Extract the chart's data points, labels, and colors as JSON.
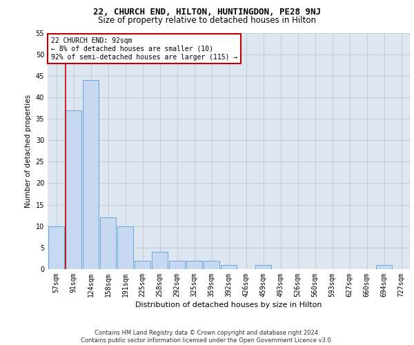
{
  "title1": "22, CHURCH END, HILTON, HUNTINGDON, PE28 9NJ",
  "title2": "Size of property relative to detached houses in Hilton",
  "xlabel": "Distribution of detached houses by size in Hilton",
  "ylabel": "Number of detached properties",
  "categories": [
    "57sqm",
    "91sqm",
    "124sqm",
    "158sqm",
    "191sqm",
    "225sqm",
    "258sqm",
    "292sqm",
    "325sqm",
    "359sqm",
    "392sqm",
    "426sqm",
    "459sqm",
    "493sqm",
    "526sqm",
    "560sqm",
    "593sqm",
    "627sqm",
    "660sqm",
    "694sqm",
    "727sqm"
  ],
  "values": [
    10,
    37,
    44,
    12,
    10,
    2,
    4,
    2,
    2,
    2,
    1,
    0,
    1,
    0,
    0,
    0,
    0,
    0,
    0,
    1,
    0
  ],
  "bar_color": "#c6d9f1",
  "bar_edge_color": "#5b9bd5",
  "highlight_bar_index": 1,
  "highlight_line_color": "#c00000",
  "annotation_text": "22 CHURCH END: 92sqm\n← 8% of detached houses are smaller (10)\n92% of semi-detached houses are larger (115) →",
  "annotation_box_edge_color": "#c00000",
  "annotation_box_face_color": "#ffffff",
  "ylim": [
    0,
    55
  ],
  "yticks": [
    0,
    5,
    10,
    15,
    20,
    25,
    30,
    35,
    40,
    45,
    50,
    55
  ],
  "grid_color": "#c0c0c0",
  "plot_bg_color": "#dce6f1",
  "footer_text": "Contains HM Land Registry data © Crown copyright and database right 2024.\nContains public sector information licensed under the Open Government Licence v3.0.",
  "title1_fontsize": 9,
  "title2_fontsize": 8.5,
  "xlabel_fontsize": 8,
  "ylabel_fontsize": 7.5,
  "tick_fontsize": 7,
  "annotation_fontsize": 7,
  "footer_fontsize": 6
}
